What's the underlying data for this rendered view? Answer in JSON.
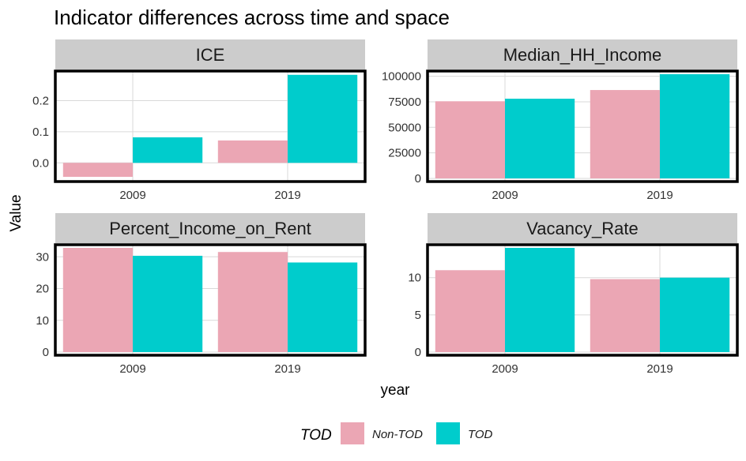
{
  "chart_data": {
    "type": "bar",
    "title": "Indicator differences across time and space",
    "xlabel": "year",
    "ylabel": "Value",
    "grid": true,
    "legend": {
      "title": "TOD",
      "position": "bottom",
      "entries": [
        {
          "name": "Non-TOD",
          "color": "#EBA6B4"
        },
        {
          "name": "TOD",
          "color": "#00CCCC"
        }
      ]
    },
    "panels": [
      {
        "title": "ICE",
        "categories": [
          "2009",
          "2019"
        ],
        "ylim": [
          -0.05,
          0.285
        ],
        "yticks": [
          0.0,
          0.1,
          0.2
        ],
        "ytick_labels": [
          "0.0",
          "0.1",
          "0.2"
        ],
        "series": [
          {
            "name": "Non-TOD",
            "values": [
              -0.045,
              0.072
            ]
          },
          {
            "name": "TOD",
            "values": [
              0.082,
              0.283
            ]
          }
        ]
      },
      {
        "title": "Median_HH_Income",
        "categories": [
          "2009",
          "2019"
        ],
        "ylim": [
          0,
          102000
        ],
        "yticks": [
          0,
          25000,
          50000,
          75000,
          100000
        ],
        "ytick_labels": [
          "0",
          "25000",
          "50000",
          "75000",
          "100000"
        ],
        "series": [
          {
            "name": "Non-TOD",
            "values": [
              75500,
              86500
            ]
          },
          {
            "name": "TOD",
            "values": [
              78000,
              102000
            ]
          }
        ]
      },
      {
        "title": "Percent_Income_on_Rent",
        "categories": [
          "2009",
          "2019"
        ],
        "ylim": [
          0,
          32.8
        ],
        "yticks": [
          0,
          10,
          20,
          30
        ],
        "ytick_labels": [
          "0",
          "10",
          "20",
          "30"
        ],
        "series": [
          {
            "name": "Non-TOD",
            "values": [
              32.8,
              31.5
            ]
          },
          {
            "name": "TOD",
            "values": [
              30.3,
              28.2
            ]
          }
        ]
      },
      {
        "title": "Vacancy_Rate",
        "categories": [
          "2009",
          "2019"
        ],
        "ylim": [
          0,
          14
        ],
        "yticks": [
          0,
          5,
          10
        ],
        "ytick_labels": [
          "0",
          "5",
          "10"
        ],
        "series": [
          {
            "name": "Non-TOD",
            "values": [
              11.0,
              9.8
            ]
          },
          {
            "name": "TOD",
            "values": [
              14.0,
              10.0
            ]
          }
        ]
      }
    ]
  }
}
